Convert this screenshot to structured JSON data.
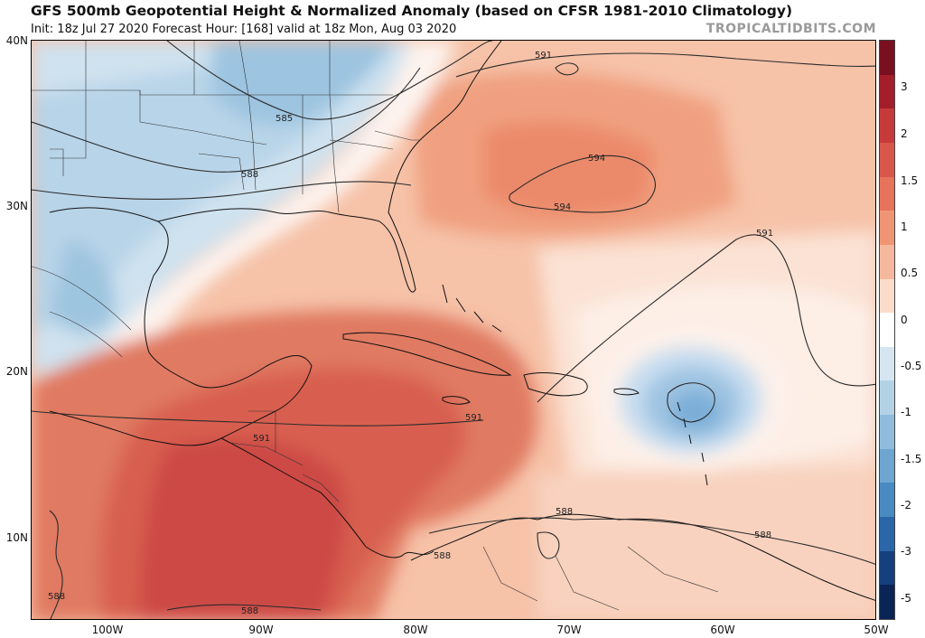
{
  "header": {
    "title": "GFS 500mb Geopotential Height & Normalized Anomaly (based on CFSR 1981-2010 Climatology)",
    "subtitle": "Init: 18z Jul 27 2020   Forecast Hour: [168]   valid at 18z Mon, Aug 03 2020",
    "brand": "TROPICALTIDBITS.COM"
  },
  "axes": {
    "lat_labels": [
      "40N",
      "30N",
      "20N",
      "10N"
    ],
    "lon_labels": [
      "100W",
      "90W",
      "80W",
      "70W",
      "60W",
      "50W"
    ]
  },
  "colorbar": {
    "labels": [
      "3",
      "2",
      "1.5",
      "1",
      "0.5",
      "0",
      "-0.5",
      "-1",
      "-1.5",
      "-2",
      "-3",
      "-5"
    ],
    "colors": [
      "#7a0f1f",
      "#a31e2a",
      "#c73a3a",
      "#d9564a",
      "#e6735a",
      "#ef9574",
      "#f6b89c",
      "#fbdccb",
      "#ffffff",
      "#d5e6f0",
      "#b3d2e6",
      "#8fbcdc",
      "#6ea6d0",
      "#4a8ac2",
      "#2a66a8",
      "#163f7e",
      "#0b2456"
    ]
  },
  "contours": {
    "labels": [
      "591",
      "585",
      "588",
      "594",
      "594",
      "591",
      "591",
      "591",
      "588",
      "588",
      "588",
      "588",
      "588"
    ]
  }
}
